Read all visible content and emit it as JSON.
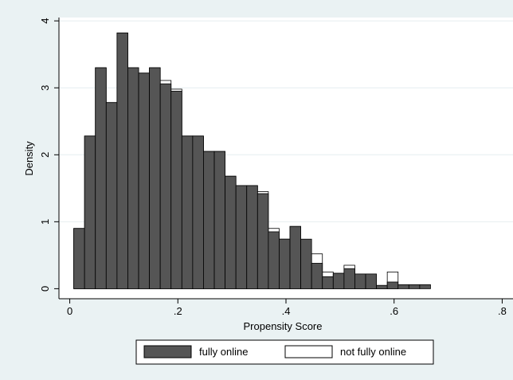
{
  "chart_data": {
    "type": "bar",
    "subtype": "overlaid-histogram",
    "xlabel": "Propensity Score",
    "ylabel": "Density",
    "xlim": [
      -0.02,
      0.82
    ],
    "ylim": [
      -0.15,
      4.05
    ],
    "x_ticks": [
      {
        "value": 0,
        "label": "0"
      },
      {
        "value": 0.2,
        "label": ".2"
      },
      {
        "value": 0.4,
        "label": ".4"
      },
      {
        "value": 0.6,
        "label": ".6"
      },
      {
        "value": 0.8,
        "label": ".8"
      }
    ],
    "y_ticks": [
      {
        "value": 0,
        "label": "0"
      },
      {
        "value": 1,
        "label": "1"
      },
      {
        "value": 2,
        "label": "2"
      },
      {
        "value": 3,
        "label": "3"
      },
      {
        "value": 4,
        "label": "4"
      }
    ],
    "grid": "horizontal",
    "bin_width": 0.02,
    "bin_starts": [
      0.0074,
      0.0274,
      0.0474,
      0.0674,
      0.0874,
      0.1074,
      0.1274,
      0.1474,
      0.1674,
      0.1874,
      0.2074,
      0.2274,
      0.2474,
      0.2674,
      0.2874,
      0.3074,
      0.3274,
      0.3474,
      0.3674,
      0.3874,
      0.4074,
      0.4274,
      0.4474,
      0.4674,
      0.4874,
      0.5074,
      0.5274,
      0.5474,
      0.5674,
      0.5874,
      0.6074,
      0.6274,
      0.6474
    ],
    "series": [
      {
        "name": "fully online",
        "color": "#555555",
        "values": [
          0.9,
          2.28,
          3.3,
          2.78,
          3.82,
          3.3,
          3.22,
          3.3,
          3.06,
          2.95,
          2.28,
          2.28,
          2.05,
          2.05,
          1.68,
          1.54,
          1.54,
          1.42,
          0.85,
          0.74,
          0.93,
          0.74,
          0.38,
          0.18,
          0.23,
          0.3,
          0.22,
          0.22,
          0.05,
          0.1,
          0.06,
          0.06,
          0.06
        ]
      },
      {
        "name": "not fully online",
        "color": "#ffffff",
        "values": [
          0.9,
          2.28,
          3.3,
          2.78,
          3.82,
          3.3,
          3.22,
          3.3,
          3.11,
          2.98,
          2.28,
          2.28,
          2.05,
          2.05,
          1.68,
          1.54,
          1.54,
          1.45,
          0.9,
          0.74,
          0.93,
          0.52,
          0.52,
          0.25,
          0.23,
          0.35,
          0.22,
          0.22,
          0.03,
          0.25,
          0,
          0,
          0
        ]
      }
    ],
    "legend": {
      "placement": "bottom"
    }
  }
}
